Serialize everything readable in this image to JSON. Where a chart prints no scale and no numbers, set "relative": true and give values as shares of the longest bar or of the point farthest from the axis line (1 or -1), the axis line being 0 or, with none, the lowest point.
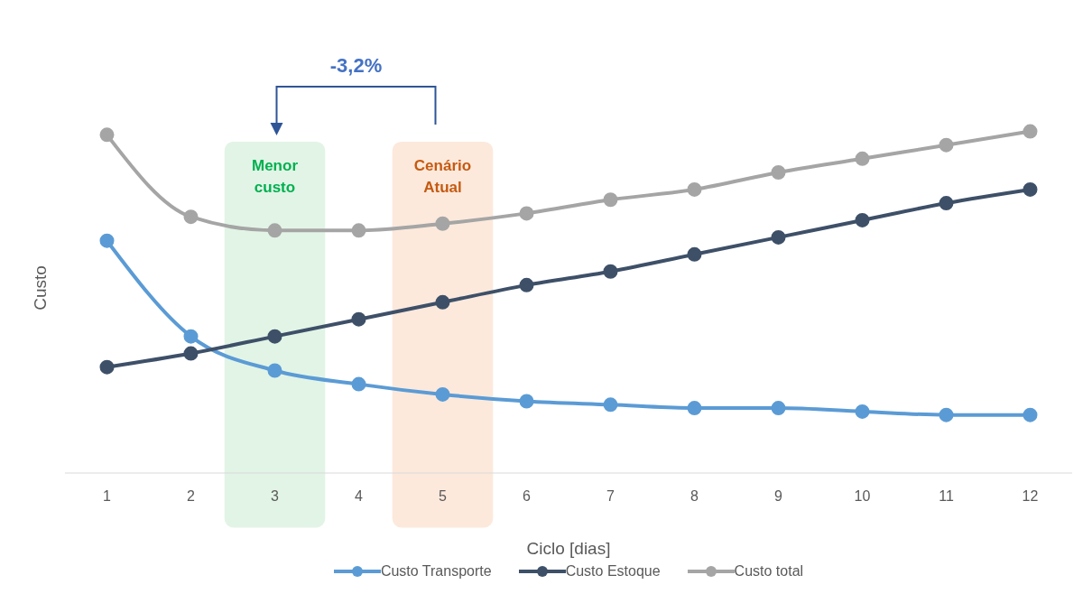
{
  "chart_data": {
    "type": "line",
    "relative": true,
    "xlabel": "Ciclo [dias]",
    "ylabel": "Custo",
    "x": [
      1,
      2,
      3,
      4,
      5,
      6,
      7,
      8,
      9,
      10,
      11,
      12
    ],
    "xlim": [
      0.5,
      12.5
    ],
    "xticks": [
      1,
      2,
      3,
      4,
      5,
      6,
      7,
      8,
      9,
      10,
      11,
      12
    ],
    "series": [
      {
        "name": "Custo Transporte",
        "color": "#5b9bd5",
        "values": [
          0.68,
          0.4,
          0.3,
          0.26,
          0.23,
          0.21,
          0.2,
          0.19,
          0.19,
          0.18,
          0.17,
          0.17
        ]
      },
      {
        "name": "Custo Estoque",
        "color": "#3e5068",
        "values": [
          0.31,
          0.35,
          0.4,
          0.45,
          0.5,
          0.55,
          0.59,
          0.64,
          0.69,
          0.74,
          0.79,
          0.83
        ]
      },
      {
        "name": "Custo total",
        "color": "#a5a5a5",
        "values": [
          0.99,
          0.75,
          0.71,
          0.71,
          0.73,
          0.76,
          0.8,
          0.83,
          0.88,
          0.92,
          0.96,
          1.0
        ]
      }
    ],
    "bands": [
      {
        "axis": "x",
        "from": 2.4,
        "to": 3.6,
        "label": "Menor custo",
        "color": "#e2f4e6"
      },
      {
        "axis": "x",
        "from": 4.4,
        "to": 5.6,
        "label": "Cenário Atual",
        "color": "#fce9dc"
      }
    ],
    "annotations": [
      "-3,2%"
    ],
    "grid": false,
    "legend": "bottom",
    "marker": "circle",
    "line_style": "solid"
  }
}
